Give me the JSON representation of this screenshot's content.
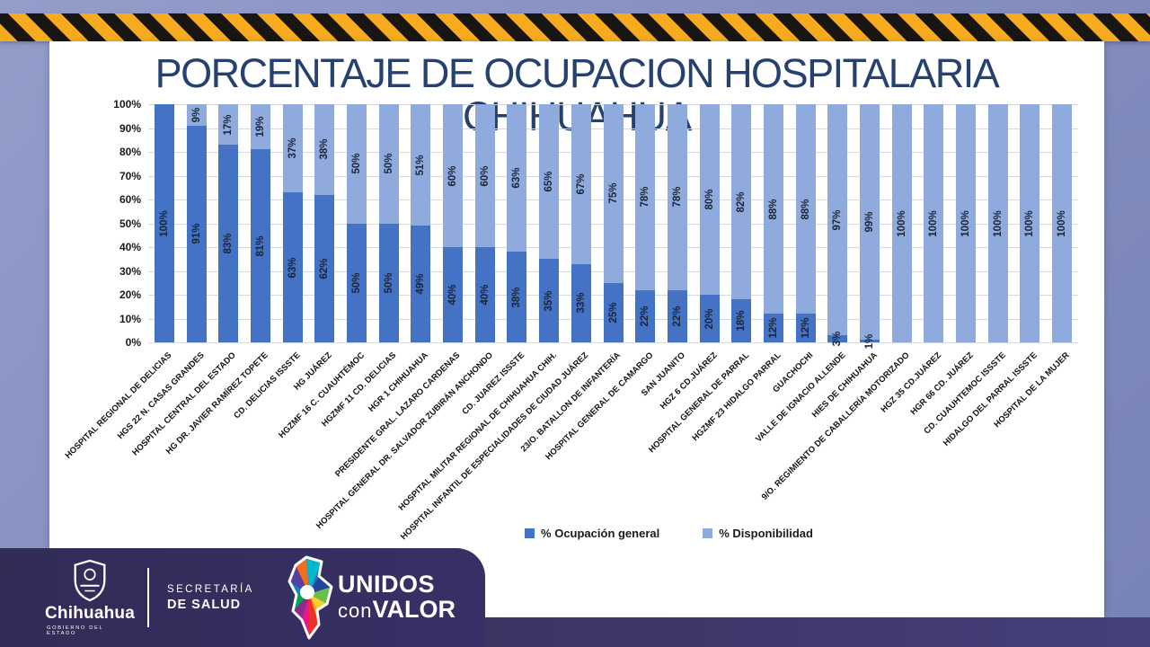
{
  "chart_data": {
    "type": "bar",
    "stacked": true,
    "title": "PORCENTAJE DE OCUPACION HOSPITALARIA CHIHUAHUA",
    "categories": [
      "HOSPITAL REGIONAL DE DELICIAS",
      "HGS 22 N. CASAS GRANDES",
      "HOSPITAL CENTRAL DEL ESTADO",
      "HG DR. JAVIER RAMÍREZ TOPETE",
      "CD. DELICIAS ISSSTE",
      "HG JUÁREZ",
      "HGZMF 16 C. CUAUHTÉMOC",
      "HGZMF 11 CD. DELICIAS",
      "HGR 1 CHIHUAHUA",
      "PRESIDENTE GRAL. LAZARO CARDENAS",
      "HOSPITAL GENERAL DR. SALVADOR ZUBIRÁN ANCHONDO",
      "CD. JUAREZ ISSSTE",
      "HOSPITAL MILITAR REGIONAL DE CHIHUAHUA CHIH.",
      "HOSPITAL INFANTIL DE ESPECIALIDADES DE CIUDAD JUÁREZ",
      "23/O. BATALLON DE INFANTERÍA",
      "HOSPITAL GENERAL DE CAMARGO",
      "SAN JUANITO",
      "HGZ 6 CD.JUÁREZ",
      "HOSPITAL GENERAL DE PARRAL",
      "HGZMF 23 HIDALGO PARRAL",
      "GUACHOCHI",
      "VALLE DE IGNACIO ALLENDE",
      "HIES DE CHIHUAHUA",
      "9/O. REGIMIENTO DE CABALLERÍA MOTORIZADO",
      "HGZ 35 CD.JUÁREZ",
      "HGR 66 CD. JUÁREZ",
      "CD. CUAUHTEMOC ISSSTE",
      "HIDALGO DEL PARRAL ISSSTE",
      "HOSPITAL DE LA MUJER"
    ],
    "series": [
      {
        "name": "% Ocupación general",
        "color": "#4472c4",
        "values": [
          100,
          91,
          83,
          81,
          63,
          62,
          50,
          50,
          49,
          40,
          40,
          38,
          35,
          33,
          25,
          22,
          22,
          20,
          18,
          12,
          12,
          3,
          1,
          0,
          0,
          0,
          0,
          0,
          0
        ]
      },
      {
        "name": "% Disponibilidad",
        "color": "#8faadc",
        "values": [
          0,
          9,
          17,
          19,
          37,
          38,
          50,
          50,
          51,
          60,
          60,
          63,
          65,
          67,
          75,
          78,
          78,
          80,
          82,
          88,
          88,
          97,
          99,
          100,
          100,
          100,
          100,
          100,
          100
        ]
      }
    ],
    "y_ticks": [
      "100%",
      "90%",
      "80%",
      "70%",
      "60%",
      "50%",
      "40%",
      "30%",
      "20%",
      "10%",
      "0%"
    ],
    "ylim": [
      0,
      100
    ],
    "grid": true,
    "legend_position": "bottom"
  },
  "footer": {
    "gobierno": {
      "brand": "Chihuahua",
      "sub": "GOBIERNO DEL ESTADO"
    },
    "secretaria": {
      "line1": "SECRETARÍA",
      "line2": "DE SALUD"
    },
    "campaign": {
      "word1": "UNIDOS",
      "word2_light": "con",
      "word2_bold": "VALOR"
    }
  },
  "colors": {
    "title_text": "#26416f",
    "card_bg": "#ffffff",
    "background": "#8590c0",
    "caution_yellow": "#f6ab1e",
    "caution_black": "#181512",
    "footer_panel": "#342e5e",
    "gridline": "#d9d9d9"
  }
}
